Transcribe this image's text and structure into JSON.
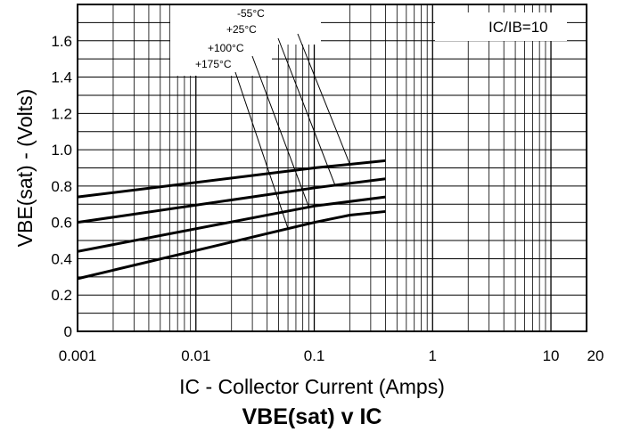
{
  "chart_data": {
    "type": "line",
    "title": "VBE(sat) v IC",
    "xlabel": "IC - Collector Current (Amps)",
    "ylabel": "VBE(sat) - (Volts)",
    "x_scale": "log",
    "xlim": [
      0.001,
      20
    ],
    "ylim": [
      0,
      1.8
    ],
    "x_ticks": [
      {
        "value": 0.001,
        "label": "0.001"
      },
      {
        "value": 0.01,
        "label": "0.01"
      },
      {
        "value": 0.1,
        "label": "0.1"
      },
      {
        "value": 1,
        "label": "1"
      },
      {
        "value": 10,
        "label": "10"
      },
      {
        "value": 20,
        "label": "20"
      }
    ],
    "y_ticks": [
      {
        "value": 0,
        "label": "0"
      },
      {
        "value": 0.2,
        "label": "0.2"
      },
      {
        "value": 0.4,
        "label": "0.4"
      },
      {
        "value": 0.6,
        "label": "0.6"
      },
      {
        "value": 0.8,
        "label": "0.8"
      },
      {
        "value": 1.0,
        "label": "1.0"
      },
      {
        "value": 1.2,
        "label": "1.2"
      },
      {
        "value": 1.4,
        "label": "1.4"
      },
      {
        "value": 1.6,
        "label": "1.6"
      }
    ],
    "grid": true,
    "condition_label": "IC/IB=10",
    "series": [
      {
        "name": "-55°C",
        "x": [
          0.001,
          0.1,
          0.4
        ],
        "y": [
          0.74,
          0.9,
          0.94
        ]
      },
      {
        "name": "+25°C",
        "x": [
          0.001,
          0.1,
          0.4
        ],
        "y": [
          0.6,
          0.79,
          0.84
        ]
      },
      {
        "name": "+100°C",
        "x": [
          0.001,
          0.1,
          0.4
        ],
        "y": [
          0.44,
          0.69,
          0.74
        ]
      },
      {
        "name": "+175°C",
        "x": [
          0.001,
          0.1,
          0.2,
          0.4
        ],
        "y": [
          0.29,
          0.6,
          0.64,
          0.66
        ]
      }
    ]
  }
}
